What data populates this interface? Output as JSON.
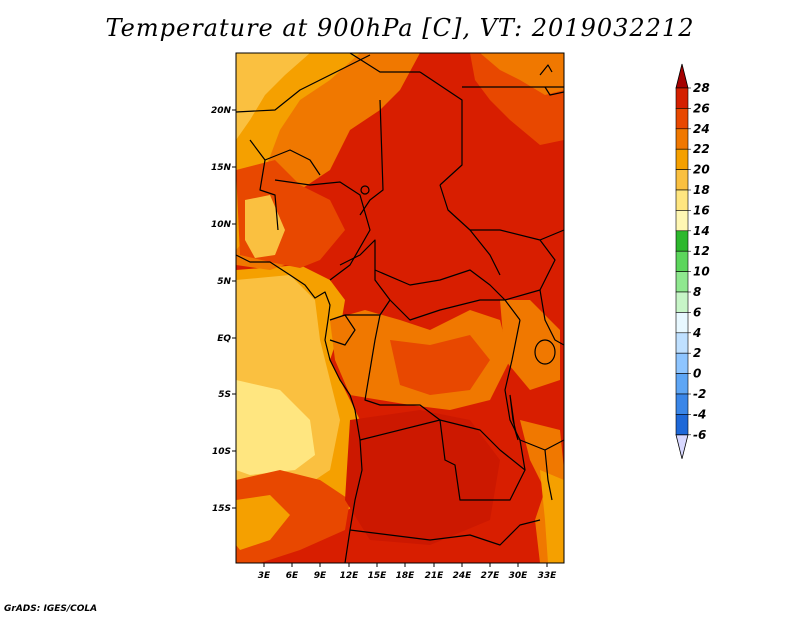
{
  "title": "Temperature at 900hPa [C], VT: 2019032212",
  "credit": "GrADS: IGES/COLA",
  "map": {
    "lat_labels": [
      "20N",
      "15N",
      "10N",
      "5N",
      "EQ",
      "5S",
      "10S",
      "15S"
    ],
    "lon_labels": [
      "3E",
      "6E",
      "9E",
      "12E",
      "15E",
      "18E",
      "21E",
      "24E",
      "27E",
      "30E",
      "33E"
    ]
  },
  "colorbar": {
    "labels": [
      "28",
      "26",
      "24",
      "22",
      "20",
      "18",
      "16",
      "14",
      "12",
      "10",
      "8",
      "6",
      "4",
      "2",
      "0",
      "-2",
      "-4",
      "-6"
    ],
    "colors": [
      "#a50000",
      "#d42000",
      "#e84800",
      "#f07800",
      "#f5a000",
      "#fac040",
      "#ffe680",
      "#fff7b3",
      "#2db82d",
      "#5cd65c",
      "#8fe88f",
      "#c7f5c7",
      "#e8f8ff",
      "#bfe0ff",
      "#8ec5ff",
      "#5ea6f5",
      "#3a86e8",
      "#1e68d8",
      "#1450c0",
      "#0a3aa0",
      "#0a1e78"
    ]
  }
}
